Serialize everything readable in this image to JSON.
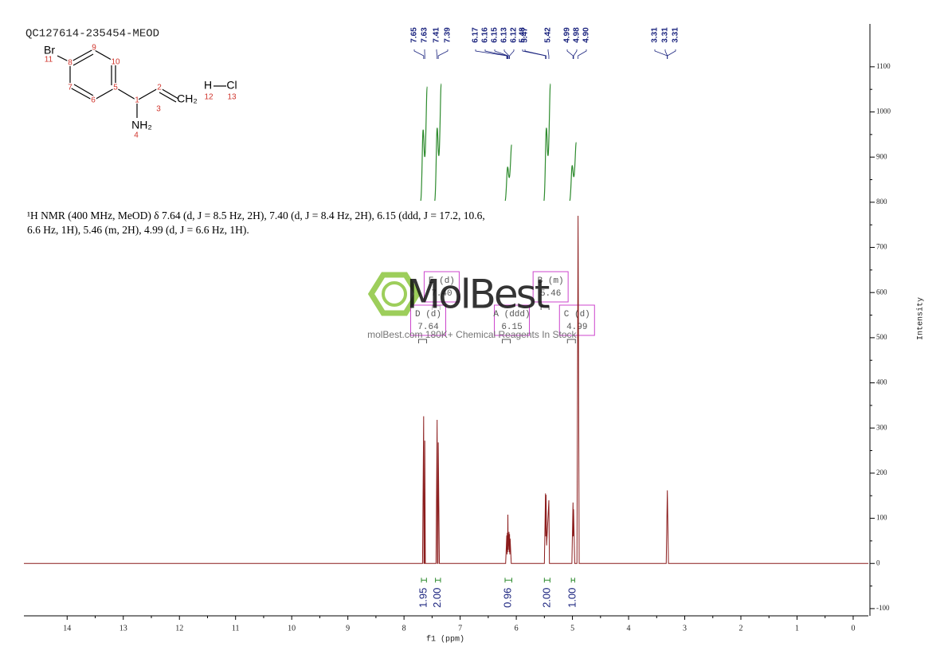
{
  "chart_data": {
    "type": "nmr",
    "title": "QC127614-235454-MEOD",
    "description": "¹H NMR (400 MHz, MeOD) δ 7.64 (d, J = 8.5 Hz, 2H), 7.40 (d, J = 8.4 Hz, 2H), 6.15 (ddd, J = 17.2, 10.6, 6.6 Hz, 1H), 5.46 (m, 2H), 4.99 (d, J = 6.6 Hz, 1H).",
    "x_label": "f1 (ppm)",
    "y_label": "Intensity",
    "color": "#8b1c1c",
    "x": [
      14.77,
      7.67,
      7.65,
      7.645,
      7.635,
      7.63,
      7.62,
      7.43,
      7.41,
      7.405,
      7.395,
      7.39,
      7.37,
      6.19,
      6.17,
      6.165,
      6.16,
      6.155,
      6.15,
      6.145,
      6.13,
      6.125,
      6.12,
      6.115,
      6.11,
      6.09,
      5.5,
      5.48,
      5.475,
      5.47,
      5.46,
      5.42,
      5.41,
      5.01,
      4.99,
      4.985,
      4.98,
      4.96,
      4.92,
      4.9,
      4.88,
      3.33,
      3.31,
      3.29,
      -0.27
    ],
    "values": [
      0,
      0,
      326,
      0,
      0,
      272,
      0,
      0,
      318,
      0,
      0,
      268,
      0,
      0,
      62,
      20,
      68,
      25,
      108,
      30,
      70,
      25,
      65,
      20,
      55,
      0,
      0,
      155,
      60,
      152,
      40,
      140,
      0,
      0,
      135,
      60,
      120,
      0,
      0,
      770,
      0,
      0,
      162,
      0,
      0
    ],
    "xlim": [
      14.77,
      -0.27
    ],
    "ylim": [
      -116,
      1195
    ],
    "xticks": [
      14,
      13,
      12,
      11,
      10,
      9,
      8,
      7,
      6,
      5,
      4,
      3,
      2,
      1,
      0
    ],
    "yticks": [
      -100,
      0,
      100,
      200,
      300,
      400,
      500,
      600,
      700,
      800,
      900,
      1000,
      1100
    ],
    "peak_labels": [
      7.65,
      7.63,
      7.41,
      7.39,
      6.17,
      6.16,
      6.15,
      6.13,
      6.12,
      5.48,
      5.47,
      5.42,
      4.99,
      4.98,
      {
        "value": 4.9,
        "label": "4.90"
      },
      3.31,
      3.31,
      3.31
    ],
    "multiplets": [
      {
        "label": "E (d)",
        "shift": {
          "value": 7.4,
          "label": "7.40"
        }
      },
      {
        "label": "D (d)",
        "shift": 7.64
      },
      {
        "label": "A (ddd)",
        "shift": 6.15
      },
      {
        "label": "B (m)",
        "shift": 5.46
      },
      {
        "label": "C (d)",
        "shift": 4.99
      }
    ],
    "integrals": {
      "ranges": [
        [
          7.69,
          7.6
        ],
        [
          7.44,
          7.35
        ],
        [
          6.2,
          6.08
        ],
        [
          5.5,
          5.4
        ],
        [
          5.02,
          4.96
        ]
      ],
      "values": [
        1.95,
        2,
        0.96,
        2,
        1
      ],
      "value_labels": [
        "1.95",
        "2.00",
        "0.96",
        "2.00",
        "1.00"
      ]
    }
  },
  "structure": {
    "atoms": [
      "Br",
      "CH₂",
      "NH₂",
      "H",
      "Cl"
    ],
    "numbers": [
      "11",
      "8",
      "9",
      "10",
      "7",
      "5",
      "6",
      "1",
      "2",
      "3",
      "4",
      "12",
      "13"
    ]
  },
  "watermark": {
    "brand": "MolBest",
    "tagline": "molBest.com 180K+ Chemical Reagents In Stock."
  }
}
